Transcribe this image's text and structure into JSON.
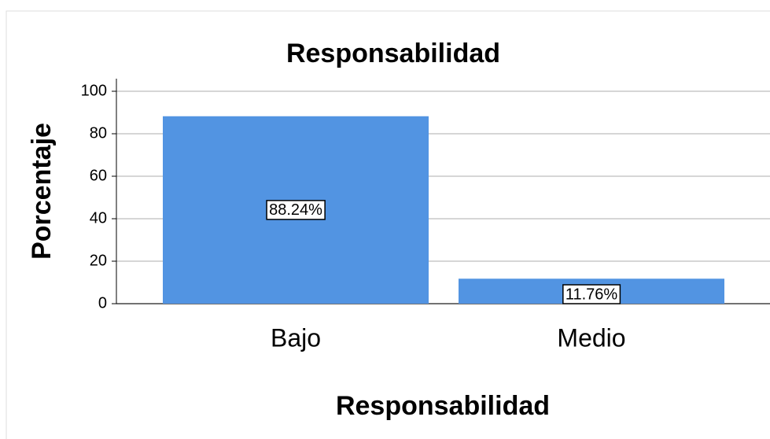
{
  "chart_data": {
    "type": "bar",
    "title": "Responsabilidad",
    "x_label": "Responsabilidad",
    "y_label": "Porcentaje",
    "categories": [
      "Bajo",
      "Medio"
    ],
    "values": [
      88.24,
      11.76
    ],
    "value_labels": [
      "88.24%",
      "11.76%"
    ],
    "color": "#5294e2",
    "ylim": [
      0,
      100
    ],
    "yticks": [
      0,
      20,
      40,
      60,
      80,
      100
    ],
    "grid": true
  }
}
